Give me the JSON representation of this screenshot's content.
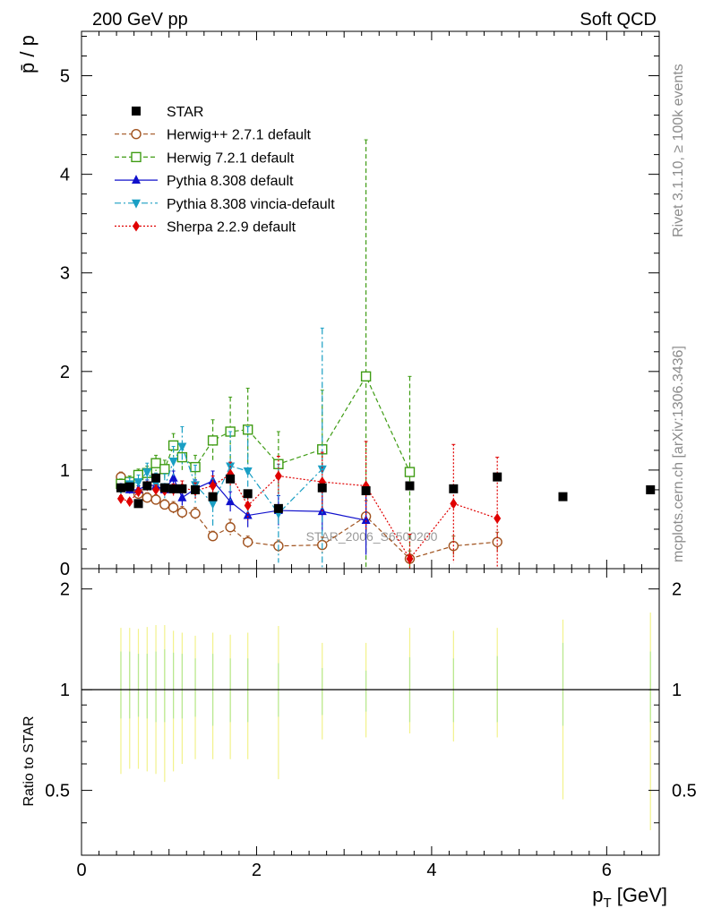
{
  "header": {
    "left": "200 GeV pp",
    "right": "Soft QCD"
  },
  "side": {
    "top": "Rivet 3.1.10, ≥ 100k events",
    "bottom": "mcplots.cern.ch [arXiv:1306.3436]"
  },
  "watermark": "STAR_2006_S6500200",
  "chart_data": [
    {
      "type": "scatter",
      "panel": "main",
      "ylabel": "p̄ / p",
      "xlim": [
        0,
        6.6
      ],
      "ylim": [
        0,
        5.45
      ],
      "yticks": [
        0,
        1,
        2,
        3,
        4,
        5
      ],
      "legend_position": "top-left",
      "colors": {
        "STAR": "#000000",
        "Herwig++ 2.7.1 default": "#a0521e",
        "Herwig 7.2.1 default": "#3f9c14",
        "Pythia 8.308 default": "#1010cc",
        "Pythia 8.308 vincia-default": "#1a9fc4",
        "Sherpa 2.2.9 default": "#e00000"
      },
      "series": [
        {
          "name": "STAR",
          "marker": "square-filled",
          "x": [
            0.45,
            0.55,
            0.65,
            0.75,
            0.85,
            0.95,
            1.05,
            1.15,
            1.3,
            1.5,
            1.7,
            1.9,
            2.25,
            2.75,
            3.25,
            3.75,
            4.25,
            4.75,
            5.5,
            6.5
          ],
          "y": [
            0.82,
            0.83,
            0.66,
            0.84,
            0.92,
            0.82,
            0.81,
            0.81,
            0.8,
            0.73,
            0.91,
            0.76,
            0.61,
            0.82,
            0.79,
            0.84,
            0.81,
            0.93,
            0.73,
            0.8
          ]
        },
        {
          "name": "Herwig++ 2.7.1 default",
          "marker": "circle-open",
          "line": "dashed",
          "x": [
            0.45,
            0.55,
            0.65,
            0.75,
            0.85,
            0.95,
            1.05,
            1.15,
            1.3,
            1.5,
            1.7,
            1.9,
            2.25,
            2.75,
            3.25,
            3.75,
            4.25,
            4.75
          ],
          "y": [
            0.93,
            0.83,
            0.76,
            0.72,
            0.7,
            0.65,
            0.62,
            0.57,
            0.56,
            0.33,
            0.42,
            0.27,
            0.23,
            0.24,
            0.53,
            0.1,
            0.23,
            0.27
          ],
          "err": [
            0.05,
            0.05,
            0.05,
            0.05,
            0.05,
            0.05,
            0.06,
            0.06,
            0.06,
            0.05,
            0.08,
            0.06,
            0.06,
            0.08,
            0.16,
            0.08,
            0.1,
            0.1
          ]
        },
        {
          "name": "Herwig 7.2.1 default",
          "marker": "square-open",
          "line": "dashed",
          "x": [
            0.45,
            0.55,
            0.65,
            0.75,
            0.85,
            0.95,
            1.05,
            1.15,
            1.3,
            1.5,
            1.7,
            1.9,
            2.25,
            2.75,
            3.25,
            3.75
          ],
          "y": [
            0.86,
            0.88,
            0.95,
            0.97,
            1.07,
            1.01,
            1.25,
            1.13,
            1.03,
            1.3,
            1.39,
            1.41,
            1.06,
            1.21,
            1.95,
            0.98
          ],
          "err": [
            0.05,
            0.06,
            0.06,
            0.07,
            0.08,
            0.09,
            0.12,
            0.13,
            0.12,
            0.21,
            0.35,
            0.42,
            0.33,
            0.6,
            2.4,
            0.97
          ]
        },
        {
          "name": "Pythia 8.308 default",
          "marker": "triangle-up-filled",
          "line": "solid",
          "x": [
            0.45,
            0.55,
            0.65,
            0.75,
            0.85,
            0.95,
            1.05,
            1.15,
            1.3,
            1.5,
            1.7,
            1.9,
            2.25,
            2.75,
            3.25
          ],
          "y": [
            0.82,
            0.8,
            0.8,
            0.85,
            0.84,
            0.8,
            0.92,
            0.72,
            0.81,
            0.89,
            0.68,
            0.54,
            0.59,
            0.58,
            0.49
          ],
          "err": [
            0.04,
            0.04,
            0.04,
            0.05,
            0.05,
            0.06,
            0.07,
            0.08,
            0.09,
            0.1,
            0.1,
            0.12,
            0.15,
            0.2,
            0.35
          ]
        },
        {
          "name": "Pythia 8.308 vincia-default",
          "marker": "triangle-down-filled",
          "line": "dashdot",
          "x": [
            0.45,
            0.55,
            0.65,
            0.75,
            0.85,
            0.95,
            1.05,
            1.15,
            1.3,
            1.5,
            1.7,
            1.9,
            2.25,
            2.75
          ],
          "y": [
            0.81,
            0.86,
            0.88,
            0.98,
            0.86,
            0.83,
            1.09,
            1.24,
            0.85,
            0.66,
            1.04,
            0.99,
            0.56,
            1.01
          ],
          "err": [
            0.05,
            0.06,
            0.07,
            0.09,
            0.11,
            0.13,
            0.15,
            0.2,
            0.2,
            0.25,
            0.35,
            0.45,
            0.5,
            1.43
          ]
        },
        {
          "name": "Sherpa 2.2.9 default",
          "marker": "diamond-filled",
          "line": "dotted",
          "x": [
            0.45,
            0.55,
            0.65,
            0.75,
            0.85,
            0.95,
            1.05,
            1.15,
            1.3,
            1.5,
            1.7,
            1.9,
            2.25,
            2.75,
            3.25,
            3.75,
            4.25,
            4.75
          ],
          "y": [
            0.71,
            0.68,
            0.78,
            0.84,
            0.8,
            0.79,
            0.8,
            0.82,
            0.79,
            0.84,
            0.96,
            0.64,
            0.94,
            0.88,
            0.84,
            0.1,
            0.66,
            0.51
          ],
          "err": [
            0.03,
            0.03,
            0.04,
            0.04,
            0.05,
            0.05,
            0.06,
            0.07,
            0.08,
            0.1,
            0.12,
            0.15,
            0.2,
            0.3,
            0.45,
            0.25,
            0.6,
            0.62
          ]
        }
      ]
    },
    {
      "type": "scatter",
      "panel": "ratio",
      "xlabel": "p_T [GeV]",
      "ylabel": "Ratio to STAR",
      "xlim": [
        0,
        6.6
      ],
      "ylim": [
        0.32,
        2.3
      ],
      "yticks": [
        0.5,
        1,
        2
      ],
      "xticks": [
        0,
        2,
        4,
        6
      ],
      "reference_line": 1,
      "uncertainty_bands": {
        "x": [
          0.45,
          0.55,
          0.65,
          0.75,
          0.85,
          0.95,
          1.05,
          1.15,
          1.3,
          1.5,
          1.7,
          1.9,
          2.25,
          2.75,
          3.25,
          3.75,
          4.25,
          4.75,
          5.5,
          6.5
        ],
        "stat_lo": [
          0.82,
          0.82,
          0.83,
          0.82,
          0.8,
          0.8,
          0.82,
          0.82,
          0.83,
          0.78,
          0.8,
          0.8,
          0.83,
          0.84,
          0.86,
          0.8,
          0.8,
          0.8,
          0.78,
          0.8
        ],
        "stat_hi": [
          1.3,
          1.3,
          1.28,
          1.28,
          1.3,
          1.32,
          1.29,
          1.28,
          1.24,
          1.28,
          1.24,
          1.24,
          1.2,
          1.16,
          1.14,
          1.25,
          1.24,
          1.26,
          1.38,
          1.3
        ],
        "tot_lo": [
          0.56,
          0.58,
          0.58,
          0.57,
          0.56,
          0.53,
          0.57,
          0.6,
          0.62,
          0.62,
          0.62,
          0.62,
          0.54,
          0.71,
          0.72,
          0.74,
          0.7,
          0.72,
          0.47,
          0.38
        ],
        "tot_hi": [
          1.53,
          1.53,
          1.52,
          1.54,
          1.56,
          1.56,
          1.5,
          1.48,
          1.45,
          1.48,
          1.46,
          1.48,
          1.55,
          1.38,
          1.38,
          1.53,
          1.5,
          1.53,
          1.62,
          1.7
        ]
      }
    }
  ]
}
